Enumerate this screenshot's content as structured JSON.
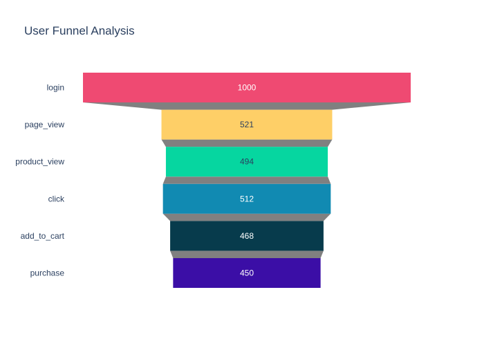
{
  "chart_data": {
    "type": "funnel",
    "title": "User Funnel Analysis",
    "categories": [
      "login",
      "page_view",
      "product_view",
      "click",
      "add_to_cart",
      "purchase"
    ],
    "values": [
      1000,
      521,
      494,
      512,
      468,
      450
    ],
    "value_labels": [
      "1000",
      "521",
      "494",
      "512",
      "468",
      "450"
    ],
    "colors": [
      "#ef4a72",
      "#fecf67",
      "#06d6a0",
      "#118ab2",
      "#073b4c",
      "#3b0ea6"
    ],
    "label_colors": [
      "#ffffff",
      "#2a3f5f",
      "#2a3f5f",
      "#ffffff",
      "#ffffff",
      "#ffffff"
    ],
    "connector_color": "#808080",
    "background": "#ffffff"
  }
}
